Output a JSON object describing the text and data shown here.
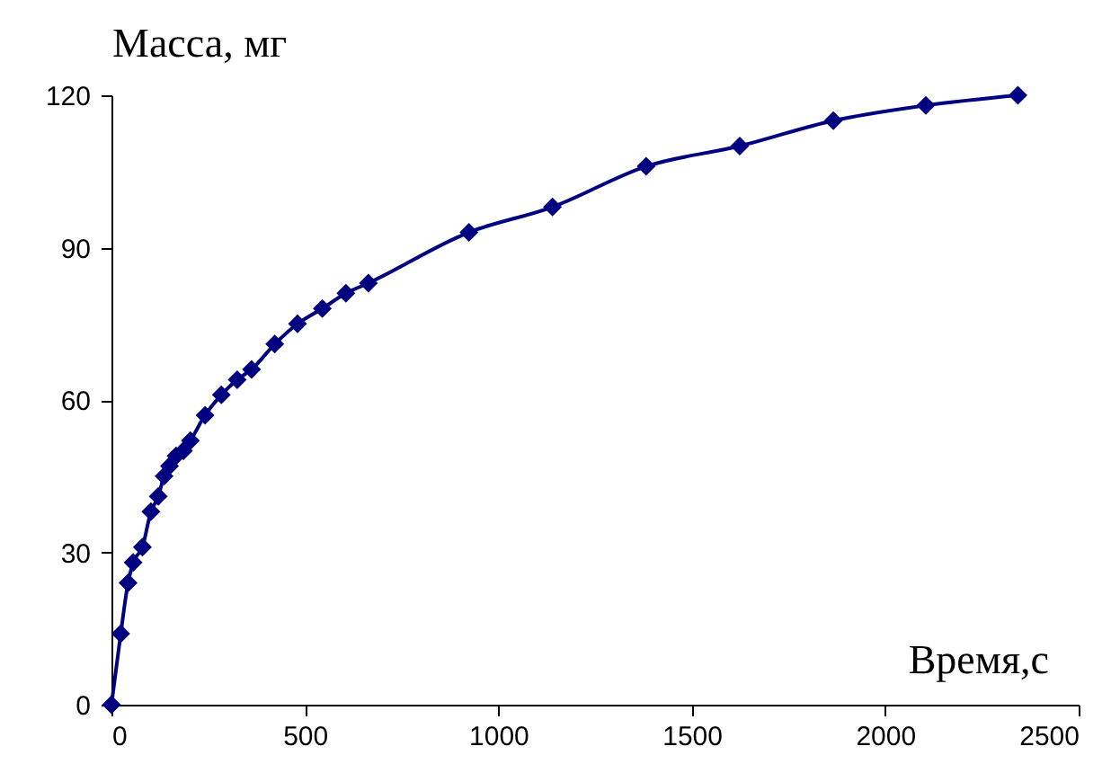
{
  "chart_data": {
    "type": "line",
    "xlabel": "Время,с",
    "ylabel": "Масса, мг",
    "x": [
      0,
      24,
      43,
      56,
      80,
      102,
      121,
      136,
      150,
      167,
      186,
      204,
      242,
      284,
      325,
      362,
      422,
      481,
      545,
      606,
      664,
      924,
      1140,
      1382,
      1624,
      1866,
      2105,
      2343
    ],
    "series": [
      {
        "color": "#000080",
        "values": [
          0,
          14,
          24,
          28,
          31,
          38,
          41,
          45,
          47,
          49,
          50,
          52,
          57,
          61,
          64,
          66,
          71,
          75,
          78,
          81,
          83,
          93,
          98,
          106,
          110,
          115,
          118,
          120
        ]
      }
    ],
    "xlim": [
      0,
      2500
    ],
    "xticks": [
      0,
      500,
      1000,
      1500,
      2000,
      2500
    ],
    "ylim": [
      0,
      120
    ],
    "yticks": [
      0,
      30,
      60,
      90,
      120
    ],
    "grid": false,
    "marker": "diamond",
    "line_style": "solid"
  }
}
